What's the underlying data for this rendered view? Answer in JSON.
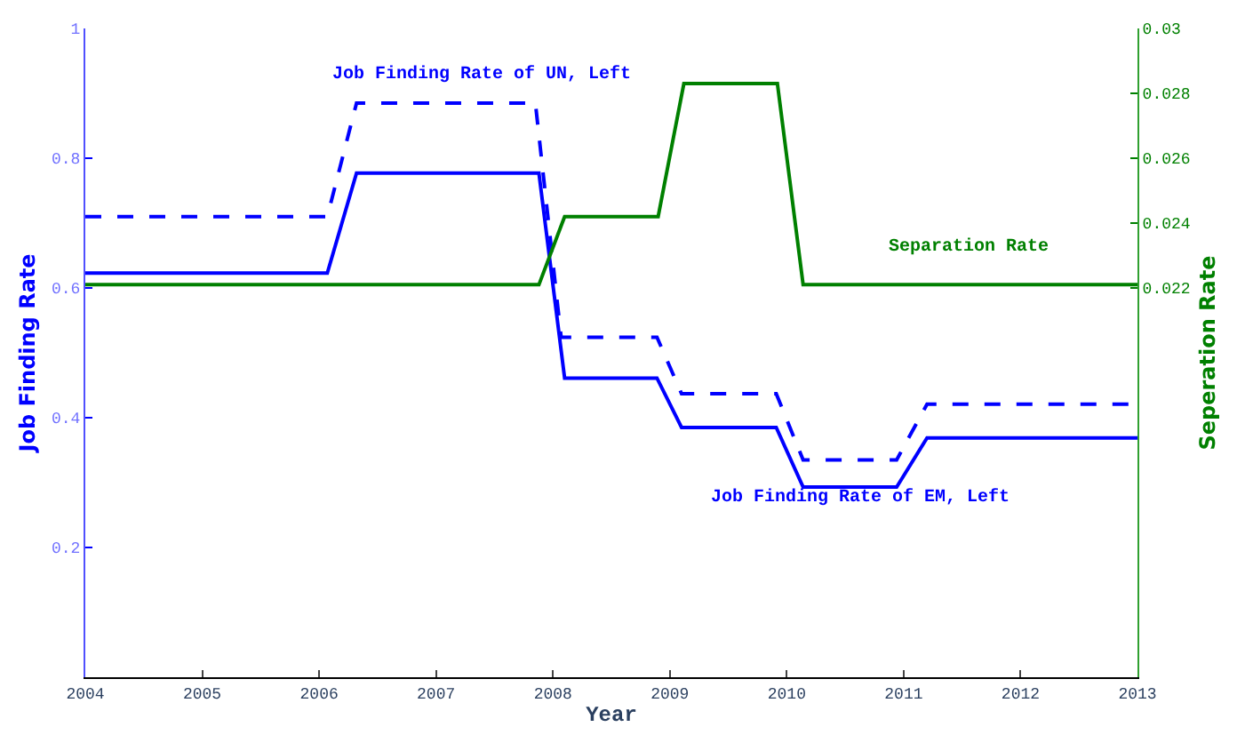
{
  "chart_data": {
    "type": "line",
    "xlabel": "Year",
    "ylabel": "Job Finding Rate",
    "y2label": "Seperation Rate",
    "xlim": [
      2004,
      2013
    ],
    "xticks": [
      2004,
      2005,
      2006,
      2007,
      2008,
      2009,
      2010,
      2011,
      2012,
      2013
    ],
    "ylim": [
      0,
      1
    ],
    "yticks": [
      0.2,
      0.4,
      0.6,
      0.8,
      1
    ],
    "y2lim": [
      0.01,
      0.03
    ],
    "y2ticks": [
      0.022,
      0.024,
      0.026,
      0.028,
      0.03
    ],
    "marker": "none",
    "series": [
      {
        "color": "#0000ff",
        "line_style": "dashed",
        "x": [
          2004,
          2006.07,
          2006.32,
          2007.85,
          2008.07,
          2008.89,
          2009.1,
          2009.91,
          2010.14,
          2010.94,
          2011.2,
          2013
        ],
        "values": [
          0.71,
          0.71,
          0.885,
          0.885,
          0.524,
          0.524,
          0.437,
          0.437,
          0.335,
          0.335,
          0.421,
          0.421
        ]
      },
      {
        "color": "#0000ff",
        "line_style": "solid",
        "x": [
          2004,
          2006.07,
          2006.32,
          2007.88,
          2008.1,
          2008.89,
          2009.1,
          2009.91,
          2010.14,
          2010.94,
          2011.2,
          2013
        ],
        "values": [
          0.623,
          0.623,
          0.777,
          0.777,
          0.461,
          0.461,
          0.385,
          0.385,
          0.293,
          0.293,
          0.369,
          0.369
        ]
      },
      {
        "color": "#008000",
        "line_style": "solid",
        "axis": "y2",
        "x": [
          2004,
          2007.88,
          2008.1,
          2008.9,
          2009.12,
          2009.92,
          2010.14,
          2013
        ],
        "values": [
          0.0221,
          0.0221,
          0.0242,
          0.0242,
          0.0283,
          0.0283,
          0.0221,
          0.0221
        ]
      }
    ],
    "annotations": [
      "Job Finding Rate of UN, Left",
      "Separation Rate",
      "Job Finding Rate of EM, Left"
    ]
  }
}
